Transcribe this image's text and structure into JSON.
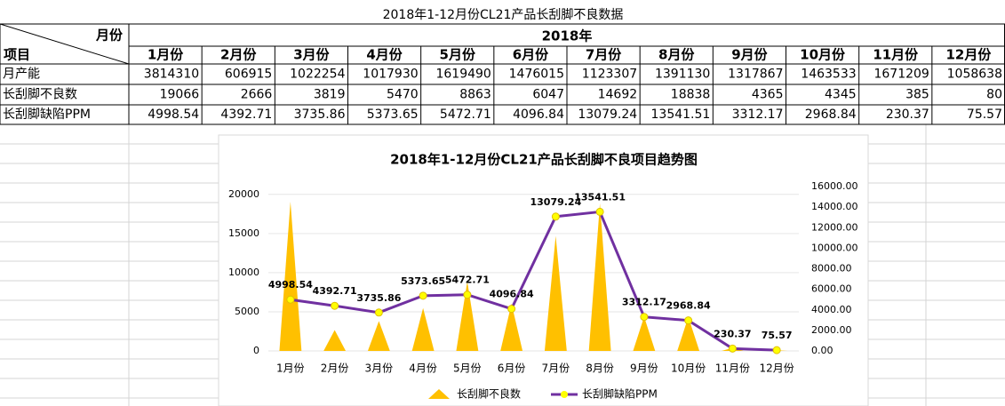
{
  "table": {
    "title": "2018年1-12月份CL21产品长刮脚不良数据",
    "corner_top": "月份",
    "corner_bottom": "项目",
    "year": "2018年",
    "columns": [
      "1月份",
      "2月份",
      "3月份",
      "4月份",
      "5月份",
      "6月份",
      "7月份",
      "8月份",
      "9月份",
      "10月份",
      "11月份",
      "12月份"
    ],
    "rows": [
      {
        "label": "月产能",
        "values": [
          3814310,
          606915,
          1022254,
          1017930,
          1619490,
          1476015,
          1123307,
          1391130,
          1317867,
          1463533,
          1671209,
          1058638
        ]
      },
      {
        "label": "长刮脚不良数",
        "values": [
          19066,
          2666,
          3819,
          5470,
          8863,
          6047,
          14692,
          18838,
          4365,
          4345,
          385,
          80
        ]
      },
      {
        "label": "长刮脚缺陷PPM",
        "values": [
          4998.54,
          4392.71,
          3735.86,
          5373.65,
          5472.71,
          4096.84,
          13079.24,
          13541.51,
          3312.17,
          2968.84,
          230.37,
          75.57
        ]
      }
    ]
  },
  "chart_data": {
    "type": "area-line",
    "title": "2018年1-12月份CL21产品长刮脚不良项目趋势图",
    "categories": [
      "1月份",
      "2月份",
      "3月份",
      "4月份",
      "5月份",
      "6月份",
      "7月份",
      "8月份",
      "9月份",
      "10月份",
      "11月份",
      "12月份"
    ],
    "series": [
      {
        "name": "长刮脚不良数",
        "color": "#ffc000",
        "axis": "y",
        "values": [
          19066,
          2666,
          3819,
          5470,
          8863,
          6047,
          14692,
          18838,
          4365,
          4345,
          385,
          80
        ]
      },
      {
        "name": "长刮脚缺陷PPM",
        "color": "#7030a0",
        "axis": "y2",
        "marker_color": "#ffff00",
        "label_color": "#0070c0",
        "values": [
          4998.54,
          4392.71,
          3735.86,
          5373.65,
          5472.71,
          4096.84,
          13079.24,
          13541.51,
          3312.17,
          2968.84,
          230.37,
          75.57
        ]
      }
    ],
    "ylim": [
      0,
      21000
    ],
    "yticks": [
      0,
      5000,
      10000,
      15000,
      20000
    ],
    "y2lim": [
      0,
      16000
    ],
    "y2ticks": [
      {
        "value": 0,
        "label": "0.00"
      },
      {
        "value": 2000,
        "label": "2000.00"
      },
      {
        "value": 4000,
        "label": "4000.00"
      },
      {
        "value": 6000,
        "label": "6000.00"
      },
      {
        "value": 8000,
        "label": "8000.00"
      },
      {
        "value": 10000,
        "label": "10000.00"
      },
      {
        "value": 12000,
        "label": "12000.00"
      },
      {
        "value": 14000,
        "label": "14000.00"
      },
      {
        "value": 16000,
        "label": "16000.00"
      }
    ],
    "grid": true,
    "legend": "bottom"
  }
}
